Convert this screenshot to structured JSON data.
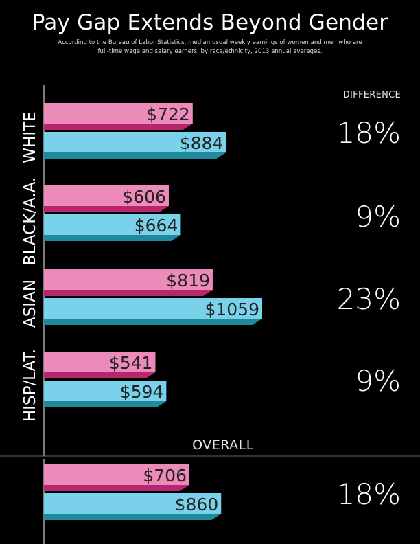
{
  "title": "Pay Gap Extends Beyond Gender",
  "subtitle_line1": "According to the Bureau of Labor Statistics, median usual weekly earnings of women and men who are",
  "subtitle_line2": "full-time wage and salary earners, by race/ethnicity, 2013 annual averages.",
  "difference_header": "DIFFERENCE",
  "overall_label": "OVERALL",
  "colors": {
    "women_face": "#ec8ab9",
    "women_shade": "#b8266f",
    "men_face": "#7ad1ea",
    "men_shade": "#1f8a9c",
    "text_on_bar": "#222222",
    "background": "#000000"
  },
  "chart_data": {
    "type": "bar",
    "orientation": "horizontal",
    "title": "Pay Gap Extends Beyond Gender",
    "categories": [
      "WHITE",
      "BLACK/A.A.",
      "ASIAN",
      "HISP/LAT.",
      "OVERALL"
    ],
    "series": [
      {
        "values": [
          722,
          606,
          819,
          541,
          706
        ]
      },
      {
        "values": [
          884,
          664,
          1059,
          594,
          860
        ]
      }
    ],
    "value_labels_women": [
      "$722",
      "$606",
      "$819",
      "$541",
      "$706"
    ],
    "value_labels_men": [
      "$884",
      "$664",
      "$1059",
      "$594",
      "$860"
    ],
    "differences": [
      "18%",
      "9%",
      "23%",
      "9%",
      "18%"
    ],
    "xlim": [
      0,
      1059
    ]
  }
}
